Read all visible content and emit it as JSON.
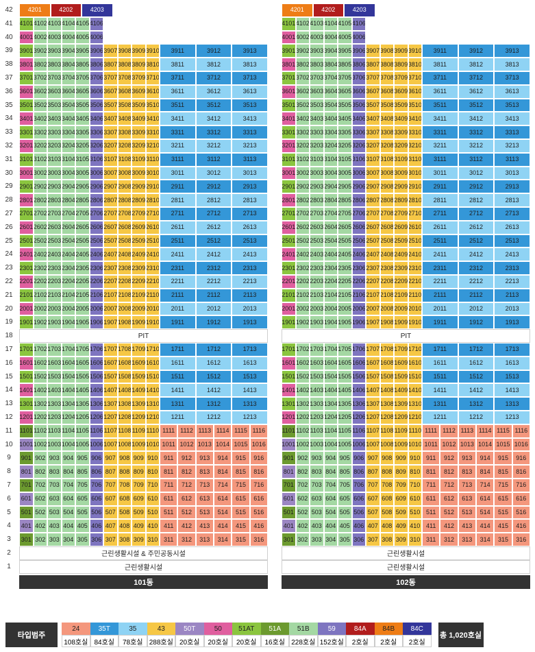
{
  "buildings": [
    {
      "name": "101동",
      "pit_label": "PIT",
      "floor2_label": "근린생활시설 & 주민공동시설",
      "floor1_label": "근린생활시설"
    },
    {
      "name": "102동",
      "pit_label": "PIT",
      "floor2_label": "근린생활시설",
      "floor1_label": "근린생활시설"
    }
  ],
  "floors": [
    "42",
    "41",
    "40",
    "39",
    "38",
    "37",
    "36",
    "35",
    "34",
    "33",
    "32",
    "31",
    "30",
    "29",
    "28",
    "27",
    "26",
    "25",
    "24",
    "23",
    "22",
    "21",
    "20",
    "19",
    "18",
    "17",
    "16",
    "15",
    "14",
    "13",
    "12",
    "11",
    "10",
    "9",
    "8",
    "7",
    "6",
    "5",
    "4",
    "3",
    "2",
    "1"
  ],
  "unit_types": {
    "24": {
      "color": "#f4977d"
    },
    "35T": {
      "color": "#3497d8"
    },
    "35": {
      "color": "#8fd3f4"
    },
    "43": {
      "color": "#f6c745"
    },
    "50T": {
      "color": "#9b86c3"
    },
    "50": {
      "color": "#e05f9f"
    },
    "51AT": {
      "color": "#8bc53f"
    },
    "51A": {
      "color": "#6c9a2f"
    },
    "51B": {
      "color": "#a4d8a3"
    },
    "59": {
      "color": "#7e75c0"
    },
    "84A": {
      "color": "#b11d1d"
    },
    "84B": {
      "color": "#ee7d16"
    },
    "84C": {
      "color": "#33369a"
    }
  },
  "legend": {
    "title": "타입범주",
    "items": [
      {
        "type": "24",
        "count": "108호실",
        "color": "#f4977d"
      },
      {
        "type": "35T",
        "count": "84호실",
        "color": "#3497d8"
      },
      {
        "type": "35",
        "count": "78호실",
        "color": "#8fd3f4"
      },
      {
        "type": "43",
        "count": "288호실",
        "color": "#f6c745"
      },
      {
        "type": "50T",
        "count": "20호실",
        "color": "#9b86c3"
      },
      {
        "type": "50",
        "count": "20호실",
        "color": "#e05f9f"
      },
      {
        "type": "51AT",
        "count": "20호실",
        "color": "#8bc53f"
      },
      {
        "type": "51A",
        "count": "16호실",
        "color": "#6c9a2f"
      },
      {
        "type": "51B",
        "count": "228호실",
        "color": "#a4d8a3"
      },
      {
        "type": "59",
        "count": "152호실",
        "color": "#7e75c0"
      },
      {
        "type": "84A",
        "count": "2호실",
        "color": "#b11d1d"
      },
      {
        "type": "84B",
        "count": "2호실",
        "color": "#ee7d16"
      },
      {
        "type": "84C",
        "count": "2호실",
        "color": "#33369a"
      }
    ],
    "total": "총 1,020호실"
  }
}
